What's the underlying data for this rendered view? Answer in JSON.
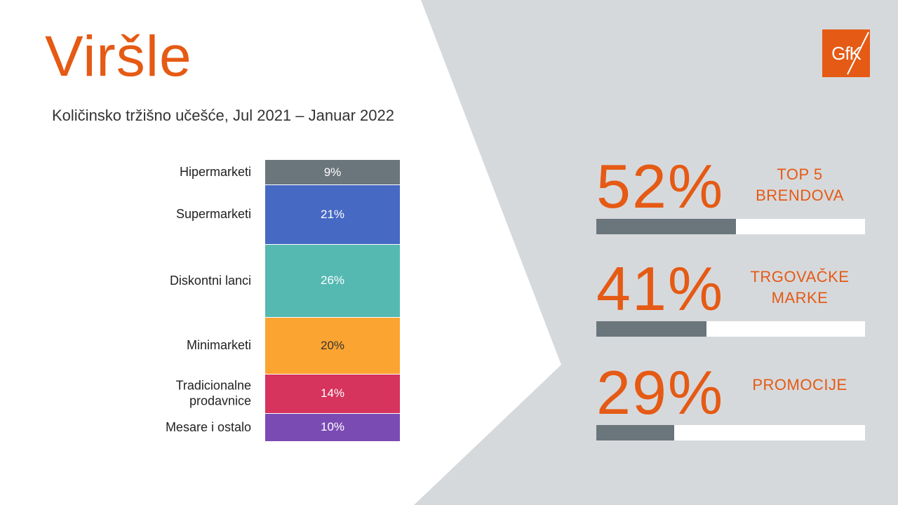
{
  "title": "Viršle",
  "subtitle": "Količinsko tržišno učešće, Jul 2021 – Januar 2022",
  "logo": {
    "text": "GfK",
    "color": "#e55a14"
  },
  "chart_data": {
    "type": "bar",
    "stacked": true,
    "orientation": "vertical-single-stack",
    "categories": [
      "Hipermarketi",
      "Supermarketi",
      "Diskontni lanci",
      "Minimarketi",
      "Tradicionalne prodavnice",
      "Mesare i ostalo"
    ],
    "label_lines": [
      [
        "Hipermarketi"
      ],
      [
        "Supermarketi"
      ],
      [
        "Diskontni lanci"
      ],
      [
        "Minimarketi"
      ],
      [
        "Tradicionalne",
        "prodavnice"
      ],
      [
        "Mesare i ostalo"
      ]
    ],
    "values": [
      9,
      21,
      26,
      20,
      14,
      10
    ],
    "value_labels": [
      "9%",
      "21%",
      "26%",
      "20%",
      "14%",
      "10%"
    ],
    "colors": [
      "#6a757c",
      "#4669c4",
      "#55b9b2",
      "#fca431",
      "#d6335d",
      "#7b4bb4"
    ],
    "unit": "%"
  },
  "metrics": [
    {
      "value": 52,
      "display": "52%",
      "label_lines": [
        "TOP 5",
        "BRENDOVA"
      ]
    },
    {
      "value": 41,
      "display": "41%",
      "label_lines": [
        "TRGOVAČKE",
        "MARKE"
      ]
    },
    {
      "value": 29,
      "display": "29%",
      "label_lines": [
        "PROMOCIJE"
      ]
    }
  ],
  "colors": {
    "accent": "#e55a14",
    "panel": "#d6d9dc",
    "bar_fill": "#6a757c"
  }
}
